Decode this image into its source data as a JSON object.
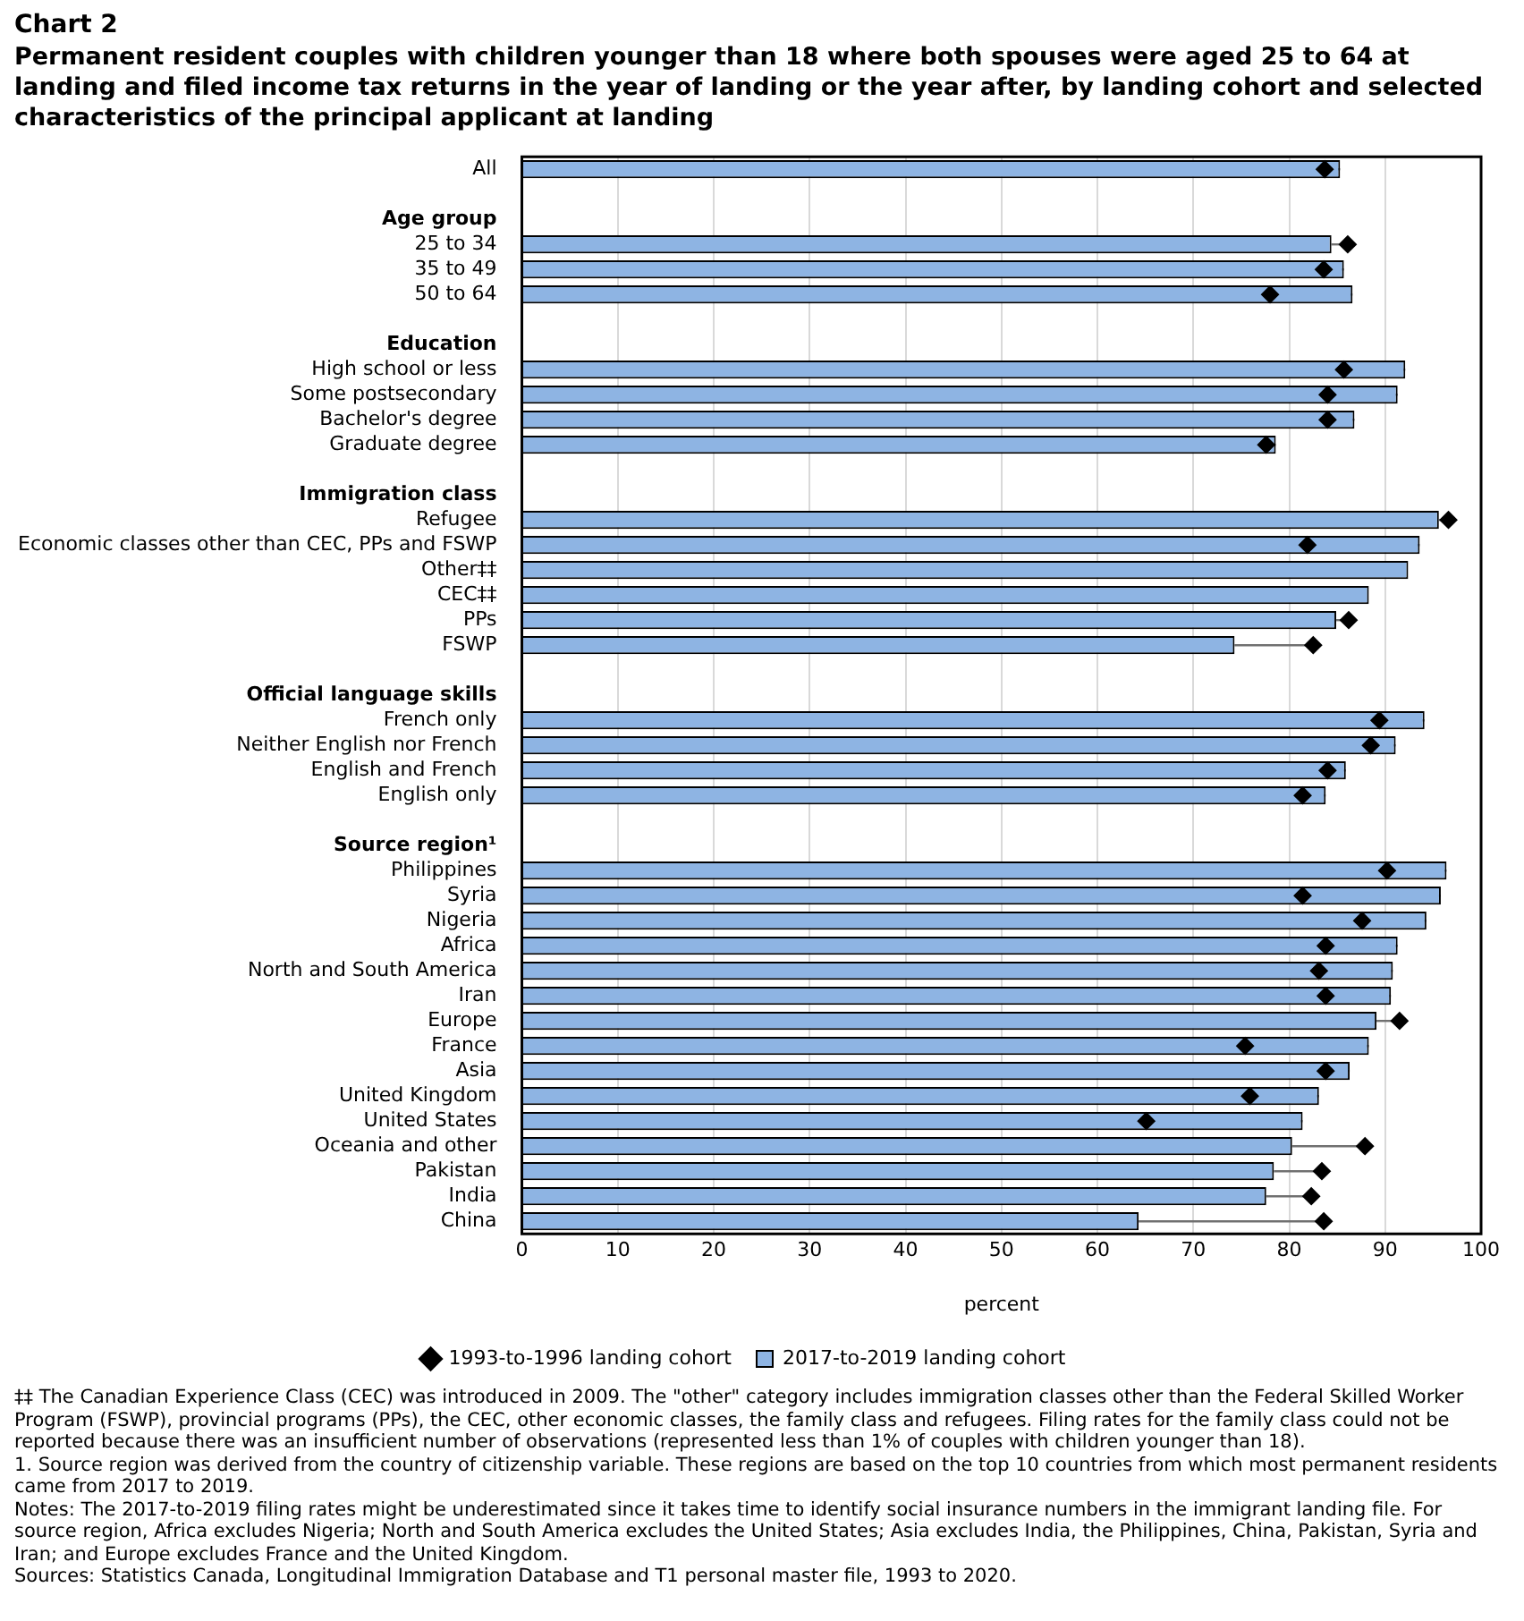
{
  "chart_data": {
    "type": "bar",
    "orientation": "horizontal",
    "title": "Chart 2",
    "subtitle": "Permanent resident couples with children younger than 18 where both spouses were aged 25 to 64 at landing and filed income tax returns in the year of landing or the year after, by landing cohort and selected characteristics of the principal applicant at landing",
    "xlabel": "percent",
    "categories": [
      "All",
      null,
      "Age group",
      "25 to 34",
      "35 to 49",
      "50 to 64",
      null,
      "Education",
      "High school or less",
      "Some postsecondary",
      "Bachelor's degree",
      "Graduate degree",
      null,
      "Immigration class",
      "Refugee",
      "Economic classes other than CEC, PPs and FSWP",
      "Other‡‡",
      "CEC‡‡",
      "PPs",
      "FSWP",
      null,
      "Official language skills",
      "French only",
      "Neither English nor French",
      "English and French",
      "English only",
      null,
      "Source region¹",
      "Philippines",
      "Syria",
      "Nigeria",
      "Africa",
      "North and South America",
      "Iran",
      "Europe",
      "France",
      "Asia",
      "United Kingdom",
      "United States",
      "Oceania and other",
      "Pakistan",
      "India",
      "China"
    ],
    "series": [
      {
        "name": "2017-to-2019 landing cohort",
        "type": "bar",
        "color": "#8eb4e3",
        "values": [
          85.3,
          null,
          null,
          84.4,
          85.7,
          86.6,
          null,
          null,
          92.1,
          91.3,
          86.8,
          78.6,
          null,
          null,
          95.6,
          93.6,
          92.4,
          88.3,
          84.9,
          74.3,
          null,
          null,
          94.1,
          91.1,
          85.9,
          83.8,
          null,
          null,
          96.4,
          95.8,
          94.3,
          91.3,
          90.8,
          90.6,
          89.1,
          88.3,
          86.3,
          83.1,
          81.4,
          80.3,
          78.4,
          77.6,
          64.3
        ],
        "errors": [
          [
            83.7,
            85.3
          ],
          null,
          null,
          [
            84.4,
            86.1
          ],
          [
            83.6,
            85.7
          ],
          [
            78.0,
            86.6
          ],
          null,
          null,
          [
            85.7,
            92.1
          ],
          [
            84.0,
            91.3
          ],
          [
            84.0,
            86.8
          ],
          [
            77.6,
            78.6
          ],
          null,
          null,
          [
            95.6,
            96.6
          ],
          [
            81.9,
            93.6
          ],
          null,
          null,
          [
            84.9,
            86.2
          ],
          [
            74.3,
            82.5
          ],
          null,
          null,
          [
            89.4,
            94.1
          ],
          [
            88.5,
            91.1
          ],
          [
            84.0,
            85.9
          ],
          [
            81.4,
            83.8
          ],
          null,
          null,
          [
            90.2,
            96.4
          ],
          [
            81.4,
            95.8
          ],
          [
            87.6,
            94.3
          ],
          [
            83.8,
            91.3
          ],
          [
            83.1,
            90.8
          ],
          [
            83.8,
            90.6
          ],
          [
            89.1,
            91.5
          ],
          [
            75.4,
            88.3
          ],
          [
            83.8,
            86.3
          ],
          [
            75.9,
            83.1
          ],
          [
            65.1,
            81.4
          ],
          [
            80.3,
            87.9
          ],
          [
            78.4,
            83.4
          ],
          [
            77.6,
            82.3
          ],
          [
            64.3,
            83.6
          ]
        ]
      },
      {
        "name": "1993-to-1996 landing cohort",
        "type": "scatter",
        "color": "#000000",
        "values": [
          83.7,
          null,
          null,
          86.1,
          83.6,
          78.0,
          null,
          null,
          85.7,
          84.0,
          84.0,
          77.6,
          null,
          null,
          96.6,
          81.9,
          null,
          null,
          86.2,
          82.5,
          null,
          null,
          89.4,
          88.5,
          84.0,
          81.4,
          null,
          null,
          90.2,
          81.4,
          87.6,
          83.8,
          83.1,
          83.8,
          91.5,
          75.4,
          83.8,
          75.9,
          65.1,
          87.9,
          83.4,
          82.3,
          83.6
        ]
      }
    ],
    "xlim": [
      0,
      100
    ],
    "xticks": [
      0,
      10,
      20,
      30,
      40,
      50,
      60,
      70,
      80,
      90,
      100
    ],
    "grid": "x",
    "legend": "bottom",
    "marker": "diamond",
    "annotations": [
      "‡‡ The Canadian Experience Class (CEC) was introduced in 2009. The \"other\" category includes immigration classes other than the Federal Skilled Worker Program (FSWP), provincial programs (PPs), the CEC, other economic classes, the family class and refugees. Filing rates for the family class could not be reported because there was an insufficient number of observations (represented less than 1% of couples with children younger than 18).",
      "1. Source region was derived from the country of citizenship variable. These regions are based on the top 10 countries from which most permanent residents came from 2017 to 2019.",
      "Notes: The 2017-to-2019 filing rates might be underestimated since it takes time to identify social insurance numbers in the immigrant landing file. For source region, Africa excludes Nigeria; North and South America excludes the United States; Asia excludes India, the Philippines, China, Pakistan, Syria and Iran; and Europe excludes France and the United Kingdom.",
      "Sources: Statistics Canada, Longitudinal Immigration Database and T1 personal master file, 1993 to 2020."
    ]
  }
}
